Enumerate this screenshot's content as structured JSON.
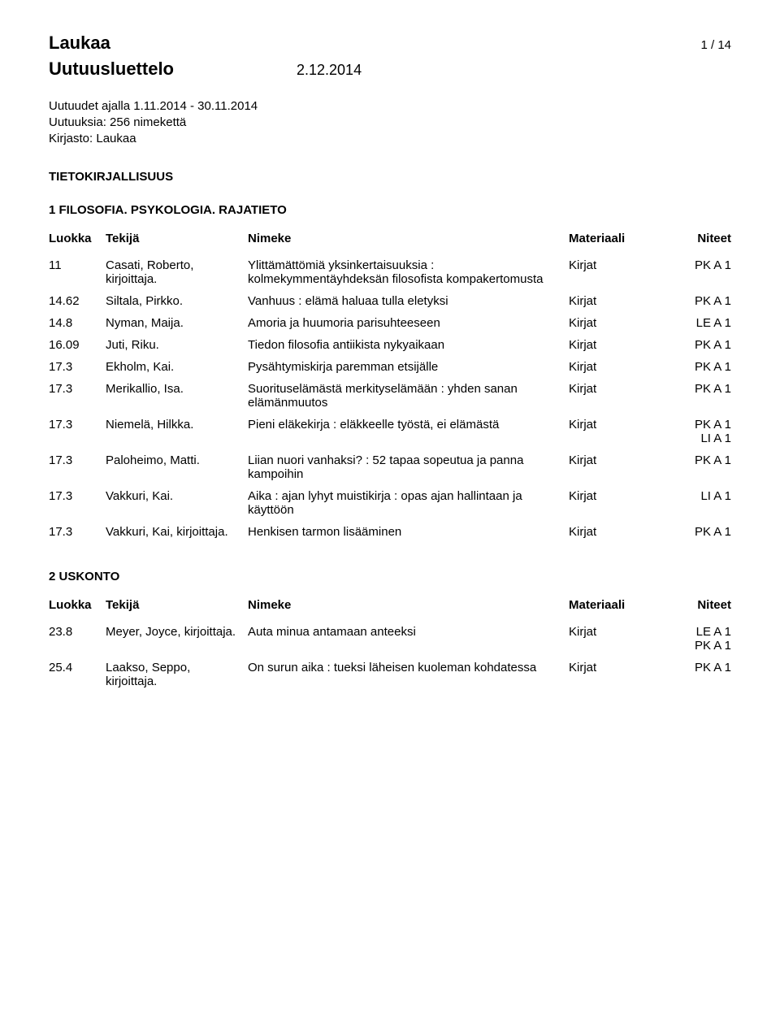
{
  "header": {
    "library_name": "Laukaa",
    "page_indicator": "1 / 14",
    "list_title": "Uutuusluettelo",
    "list_date": "2.12.2014"
  },
  "meta": {
    "date_range": "Uutuudet ajalla 1.11.2014 - 30.11.2014",
    "count_line": "Uutuuksia: 256 nimekettä",
    "library_line": "Kirjasto: Laukaa"
  },
  "top_section": "TIETOKIRJALLISUUS",
  "column_headers": {
    "class": "Luokka",
    "author": "Tekijä",
    "title": "Nimeke",
    "material": "Materiaali",
    "bundle": "Niteet"
  },
  "sections": [
    {
      "heading": "1 FILOSOFIA. PSYKOLOGIA. RAJATIETO",
      "rows": [
        {
          "class": "11",
          "author": "Casati, Roberto, kirjoittaja.",
          "title": "Ylittämättömiä yksinkertaisuuksia : kolmekymmentäyhdeksän filosofista kompakertomusta",
          "material": "Kirjat",
          "bundles": [
            "PK A 1"
          ]
        },
        {
          "class": "14.62",
          "author": "Siltala, Pirkko.",
          "title": "Vanhuus : elämä haluaa tulla eletyksi",
          "material": "Kirjat",
          "bundles": [
            "PK A 1"
          ]
        },
        {
          "class": "14.8",
          "author": "Nyman, Maija.",
          "title": "Amoria ja huumoria parisuhteeseen",
          "material": "Kirjat",
          "bundles": [
            "LE A 1"
          ]
        },
        {
          "class": "16.09",
          "author": "Juti, Riku.",
          "title": "Tiedon filosofia antiikista nykyaikaan",
          "material": "Kirjat",
          "bundles": [
            "PK A 1"
          ]
        },
        {
          "class": "17.3",
          "author": "Ekholm, Kai.",
          "title": "Pysähtymiskirja paremman etsijälle",
          "material": "Kirjat",
          "bundles": [
            "PK A 1"
          ]
        },
        {
          "class": "17.3",
          "author": "Merikallio, Isa.",
          "title": "Suorituselämästä merkityselämään : yhden sanan elämänmuutos",
          "material": "Kirjat",
          "bundles": [
            "PK A 1"
          ]
        },
        {
          "class": "17.3",
          "author": "Niemelä, Hilkka.",
          "title": "Pieni eläkekirja : eläkkeelle työstä, ei elämästä",
          "material": "Kirjat",
          "bundles": [
            "PK A 1",
            "LI A 1"
          ]
        },
        {
          "class": "17.3",
          "author": "Paloheimo, Matti.",
          "title": "Liian nuori vanhaksi? : 52 tapaa sopeutua ja panna kampoihin",
          "material": "Kirjat",
          "bundles": [
            "PK A 1"
          ]
        },
        {
          "class": "17.3",
          "author": "Vakkuri, Kai.",
          "title": "Aika : ajan lyhyt muistikirja : opas ajan hallintaan ja käyttöön",
          "material": "Kirjat",
          "bundles": [
            "LI A 1"
          ]
        },
        {
          "class": "17.3",
          "author": "Vakkuri, Kai, kirjoittaja.",
          "title": "Henkisen tarmon lisääminen",
          "material": "Kirjat",
          "bundles": [
            "PK A 1"
          ]
        }
      ]
    },
    {
      "heading": "2 USKONTO",
      "rows": [
        {
          "class": "23.8",
          "author": "Meyer, Joyce, kirjoittaja.",
          "title": "Auta minua antamaan anteeksi",
          "material": "Kirjat",
          "bundles": [
            "LE A 1",
            "PK A 1"
          ]
        },
        {
          "class": "25.4",
          "author": "Laakso, Seppo, kirjoittaja.",
          "title": "On surun aika : tueksi läheisen kuoleman kohdatessa",
          "material": "Kirjat",
          "bundles": [
            "PK A 1"
          ]
        }
      ]
    }
  ]
}
